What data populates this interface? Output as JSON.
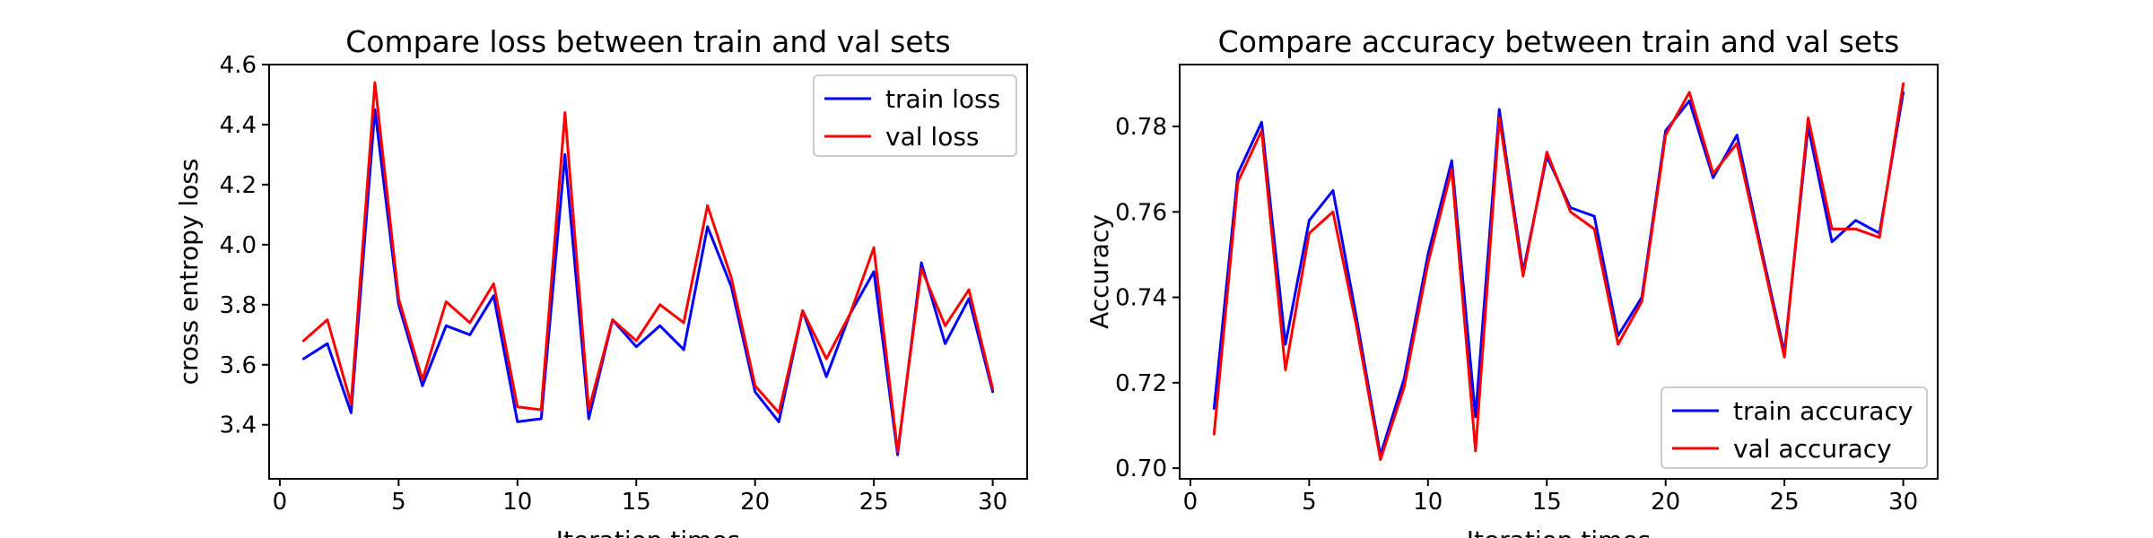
{
  "chart_data": [
    {
      "type": "line",
      "title": "Compare loss between train and val sets",
      "xlabel": "Iteration times",
      "ylabel": "cross entropy loss",
      "xlim": [
        -0.45,
        31.45
      ],
      "ylim": [
        3.22,
        4.6
      ],
      "xticks": [
        0,
        5,
        10,
        15,
        20,
        25,
        30
      ],
      "yticks": [
        3.4,
        3.6,
        3.8,
        4.0,
        4.2,
        4.4,
        4.6
      ],
      "ytick_decimals": 1,
      "legend": "upper right",
      "x": [
        1,
        2,
        3,
        4,
        5,
        6,
        7,
        8,
        9,
        10,
        11,
        12,
        13,
        14,
        15,
        16,
        17,
        18,
        19,
        20,
        21,
        22,
        23,
        24,
        25,
        26,
        27,
        28,
        29,
        30
      ],
      "series": [
        {
          "name": "train loss",
          "color": "#0000ff",
          "values": [
            3.62,
            3.67,
            3.44,
            4.45,
            3.8,
            3.53,
            3.73,
            3.7,
            3.83,
            3.41,
            3.42,
            4.3,
            3.42,
            3.75,
            3.66,
            3.73,
            3.65,
            4.06,
            3.86,
            3.51,
            3.41,
            3.78,
            3.56,
            3.77,
            3.91,
            3.3,
            3.94,
            3.67,
            3.82,
            3.51
          ]
        },
        {
          "name": "val loss",
          "color": "#ff0000",
          "values": [
            3.68,
            3.75,
            3.47,
            4.54,
            3.82,
            3.55,
            3.81,
            3.74,
            3.87,
            3.46,
            3.45,
            4.44,
            3.45,
            3.75,
            3.68,
            3.8,
            3.74,
            4.13,
            3.89,
            3.53,
            3.44,
            3.78,
            3.62,
            3.77,
            3.99,
            3.31,
            3.92,
            3.73,
            3.85,
            3.52
          ]
        }
      ]
    },
    {
      "type": "line",
      "title": "Compare accuracy between train and val sets",
      "xlabel": "Iteration times",
      "ylabel": "Accuracy",
      "xlim": [
        -0.45,
        31.45
      ],
      "ylim": [
        0.6975,
        0.7945
      ],
      "xticks": [
        0,
        5,
        10,
        15,
        20,
        25,
        30
      ],
      "yticks": [
        0.7,
        0.72,
        0.74,
        0.76,
        0.78
      ],
      "ytick_decimals": 2,
      "legend": "lower right",
      "x": [
        1,
        2,
        3,
        4,
        5,
        6,
        7,
        8,
        9,
        10,
        11,
        12,
        13,
        14,
        15,
        16,
        17,
        18,
        19,
        20,
        21,
        22,
        23,
        24,
        25,
        26,
        27,
        28,
        29,
        30
      ],
      "series": [
        {
          "name": "train accuracy",
          "color": "#0000ff",
          "values": [
            0.714,
            0.769,
            0.781,
            0.729,
            0.758,
            0.765,
            0.735,
            0.703,
            0.721,
            0.75,
            0.772,
            0.712,
            0.784,
            0.746,
            0.773,
            0.761,
            0.759,
            0.731,
            0.74,
            0.779,
            0.786,
            0.768,
            0.778,
            0.752,
            0.727,
            0.78,
            0.753,
            0.758,
            0.755,
            0.788
          ]
        },
        {
          "name": "val accuracy",
          "color": "#ff0000",
          "values": [
            0.708,
            0.767,
            0.779,
            0.723,
            0.755,
            0.76,
            0.733,
            0.702,
            0.719,
            0.748,
            0.77,
            0.704,
            0.782,
            0.745,
            0.774,
            0.76,
            0.756,
            0.729,
            0.739,
            0.778,
            0.788,
            0.769,
            0.776,
            0.751,
            0.726,
            0.782,
            0.756,
            0.756,
            0.754,
            0.79
          ]
        }
      ]
    }
  ]
}
